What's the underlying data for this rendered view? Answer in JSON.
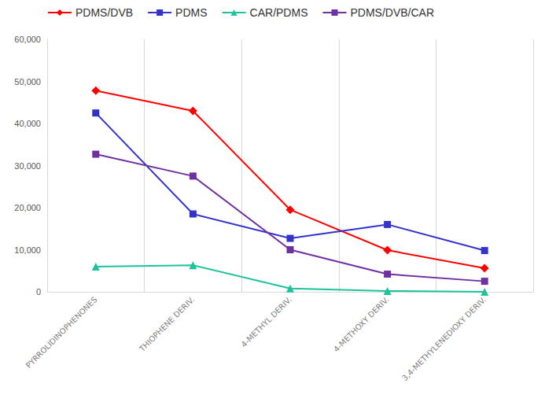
{
  "chart_data": {
    "type": "line",
    "categories": [
      "PYRROLIDINOPHENONES",
      "THIOPHENE DERIV.",
      "4-METHYL DERIV.",
      "4-METHOXY DERIV.",
      "3,4-METHYLENEDIOXY DERIV."
    ],
    "series": [
      {
        "name": "PDMS/DVB",
        "color": "#ff0000",
        "marker": "diamond",
        "values": [
          47800,
          43000,
          19500,
          9900,
          5600
        ]
      },
      {
        "name": "PDMS",
        "color": "#3333cc",
        "marker": "square",
        "values": [
          42500,
          18500,
          12700,
          16000,
          9800
        ]
      },
      {
        "name": "CAR/PDMS",
        "color": "#1cc39b",
        "marker": "triangle",
        "values": [
          6000,
          6300,
          800,
          200,
          0
        ]
      },
      {
        "name": "PDMS/DVB/CAR",
        "color": "#7030a0",
        "marker": "square",
        "values": [
          32700,
          27500,
          10000,
          4200,
          2500
        ]
      }
    ],
    "ylim": [
      0,
      60000
    ],
    "yticks": [
      0,
      10000,
      20000,
      30000,
      40000,
      50000,
      60000
    ],
    "grid": true,
    "legend": "top"
  }
}
